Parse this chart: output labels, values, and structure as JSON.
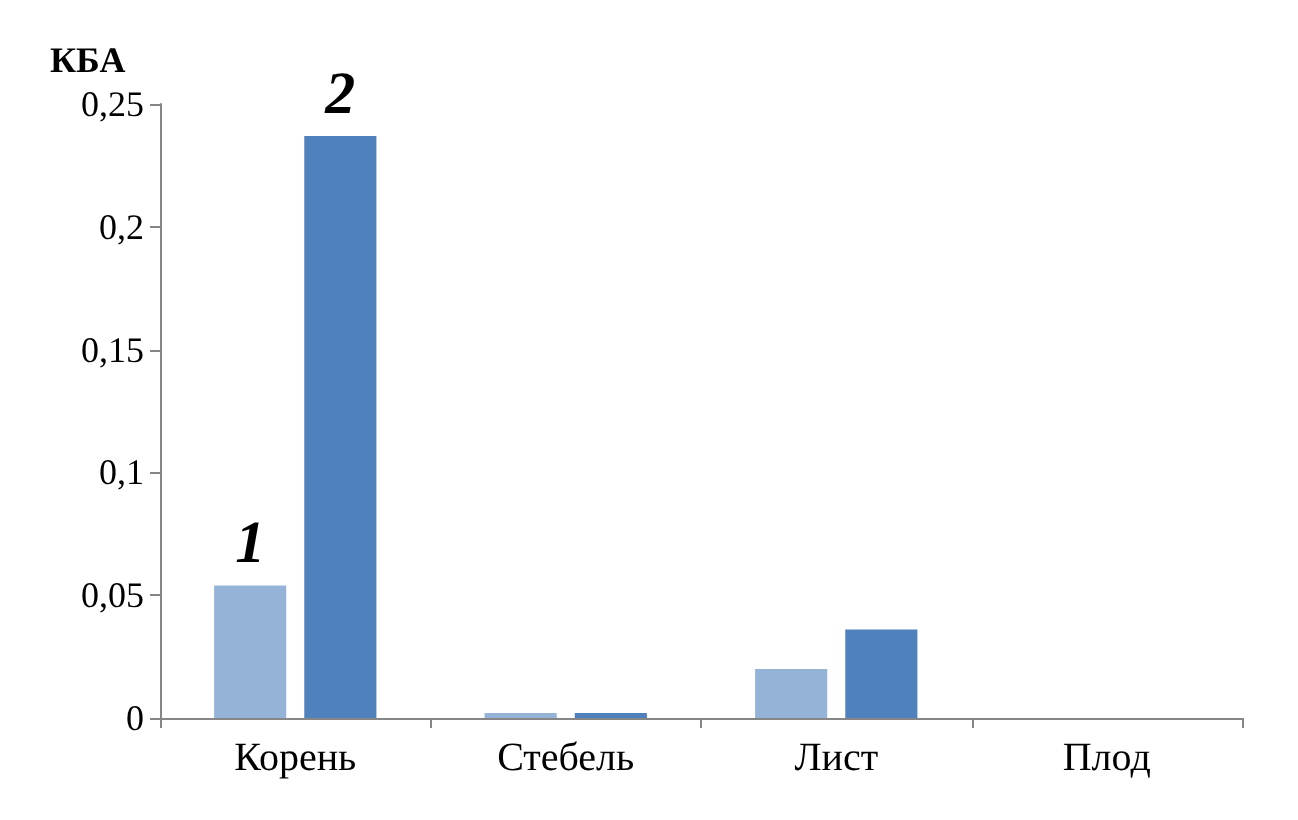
{
  "chart_data": {
    "type": "bar",
    "ylabel": "КБА",
    "categories": [
      "Корень",
      "Стебель",
      "Лист",
      "Плод"
    ],
    "series": [
      {
        "name": "1",
        "color": "#95b3d7",
        "values": [
          0.054,
          0.002,
          0.02,
          0
        ]
      },
      {
        "name": "2",
        "color": "#4f81bd",
        "values": [
          0.237,
          0.002,
          0.036,
          0
        ]
      }
    ],
    "ylim": [
      0,
      0.25
    ],
    "yticks": [
      {
        "value": 0,
        "label": "0"
      },
      {
        "value": 0.05,
        "label": "0,05"
      },
      {
        "value": 0.1,
        "label": "0,1"
      },
      {
        "value": 0.15,
        "label": "0,15"
      },
      {
        "value": 0.2,
        "label": "0,2"
      },
      {
        "value": 0.25,
        "label": "0,25"
      }
    ],
    "grid": false,
    "legend": false
  }
}
